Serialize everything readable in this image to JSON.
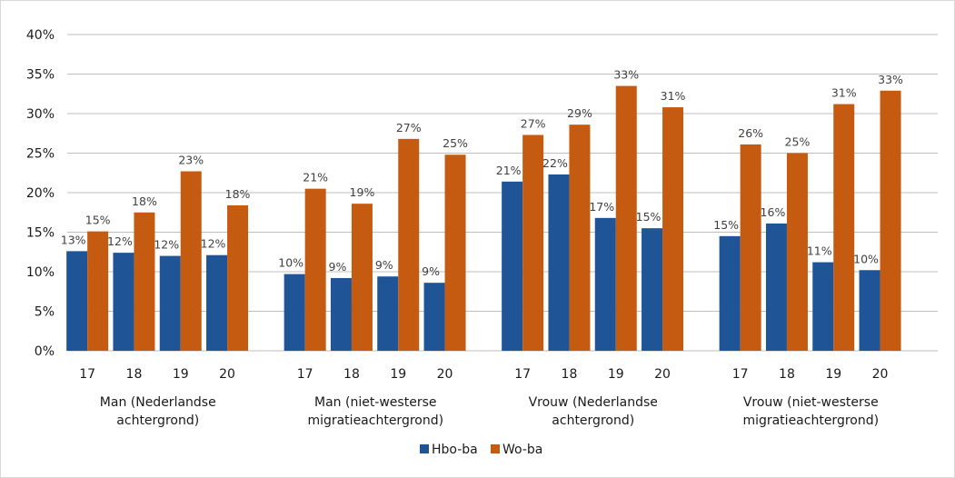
{
  "chart_data": {
    "type": "bar",
    "title": "",
    "xlabel": "",
    "ylabel": "",
    "ylim": [
      0,
      40
    ],
    "y_ticks": [
      "0%",
      "5%",
      "10%",
      "15%",
      "20%",
      "25%",
      "30%",
      "35%",
      "40%"
    ],
    "grid": "horizontal",
    "legend_position": "bottom",
    "groups": [
      {
        "label": "Man (Nederlandse achtergrond)",
        "label_lines": [
          "Man (Nederlandse",
          "achtergrond)"
        ]
      },
      {
        "label": "Man (niet-westerse migratieachtergrond)",
        "label_lines": [
          "Man (niet-westerse",
          "migratieachtergrond)"
        ]
      },
      {
        "label": "Vrouw (Nederlandse achtergrond)",
        "label_lines": [
          "Vrouw (Nederlandse",
          "achtergrond)"
        ]
      },
      {
        "label": "Vrouw (niet-westerse migratieachtergrond)",
        "label_lines": [
          "Vrouw (niet-westerse",
          "migratieachtergrond)"
        ]
      }
    ],
    "categories": [
      "17",
      "18",
      "19",
      "20"
    ],
    "series": [
      {
        "name": "Hbo-ba",
        "color": "#1f5597",
        "values": [
          [
            12.6,
            12.4,
            12.0,
            12.1
          ],
          [
            9.7,
            9.2,
            9.4,
            8.6
          ],
          [
            21.4,
            22.3,
            16.8,
            15.5
          ],
          [
            14.5,
            16.1,
            11.2,
            10.2
          ]
        ],
        "labels": [
          [
            "13%",
            "12%",
            "12%",
            "12%"
          ],
          [
            "10%",
            "9%",
            "9%",
            "9%"
          ],
          [
            "21%",
            "22%",
            "17%",
            "15%"
          ],
          [
            "15%",
            "16%",
            "11%",
            "10%"
          ]
        ]
      },
      {
        "name": "Wo-ba",
        "color": "#c55a11",
        "values": [
          [
            15.1,
            17.5,
            22.7,
            18.4
          ],
          [
            20.5,
            18.6,
            26.8,
            24.8
          ],
          [
            27.3,
            28.6,
            33.5,
            30.8
          ],
          [
            26.1,
            25.0,
            31.2,
            32.9
          ]
        ],
        "labels": [
          [
            "15%",
            "18%",
            "23%",
            "18%"
          ],
          [
            "21%",
            "19%",
            "27%",
            "25%"
          ],
          [
            "27%",
            "29%",
            "33%",
            "31%"
          ],
          [
            "26%",
            "25%",
            "31%",
            "33%"
          ]
        ]
      }
    ]
  }
}
